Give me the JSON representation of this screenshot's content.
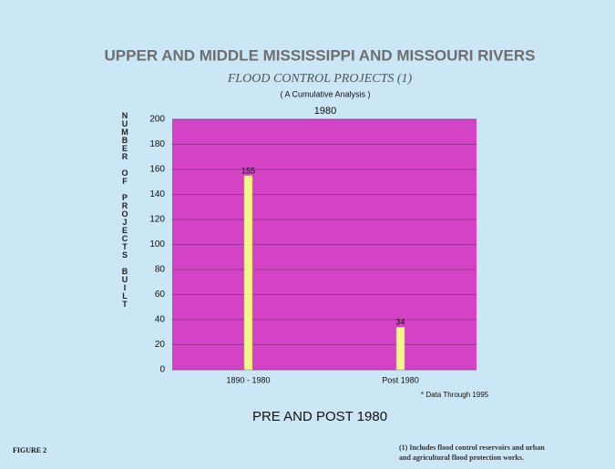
{
  "chart_data": {
    "type": "bar",
    "title": "UPPER AND MIDDLE MISSISSIPPI AND MISSOURI RIVERS",
    "subtitle": "FLOOD CONTROL PROJECTS (1)",
    "note": "( A Cumulative Analysis )",
    "year_label": "1980",
    "y_label": "NUMBER OF PROJECTS BUILT",
    "categories": [
      "1890 - 1980",
      "Post 1980"
    ],
    "values": [
      155,
      34
    ],
    "color": "#f6f58a",
    "plot_color": "#d443c6",
    "ylim": [
      0,
      200
    ],
    "yticks": [
      0,
      20,
      40,
      60,
      80,
      100,
      120,
      140,
      160,
      180,
      200
    ],
    "grid": true,
    "data_note": "* Data Through 1995",
    "caption": "PRE AND POST 1980",
    "figure_label": "FIGURE 2",
    "footnote": [
      "(1) Includes flood control reservoirs and urban",
      "and agricultural flood protection works."
    ]
  }
}
